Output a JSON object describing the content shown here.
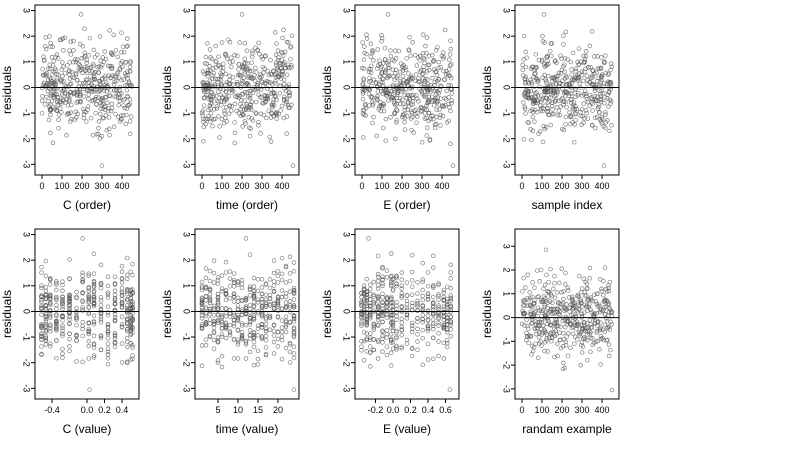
{
  "chart_data": [
    {
      "type": "scatter",
      "xlabel": "C (order)",
      "ylabel": "residuals",
      "xlim": [
        -20,
        470
      ],
      "ylim": [
        -3.3,
        3.1
      ],
      "xticks": [
        0,
        100,
        200,
        300,
        400
      ],
      "xtick_labels": [
        "0",
        "100",
        "200",
        "300",
        "400"
      ],
      "yticks": [
        -3,
        -2,
        -1,
        0,
        1,
        2,
        3
      ],
      "ytick_labels": [
        "-3",
        "-2",
        "-1",
        "0",
        "1",
        "2",
        "3"
      ],
      "hline": 0,
      "seed": 11,
      "gen": "order",
      "outlier_x": [
        195,
        300
      ],
      "n": 450
    },
    {
      "type": "scatter",
      "xlabel": "time (order)",
      "ylabel": "residuals",
      "xlim": [
        -20,
        470
      ],
      "ylim": [
        -3.3,
        3.1
      ],
      "xticks": [
        0,
        100,
        200,
        300,
        400
      ],
      "xtick_labels": [
        "0",
        "100",
        "200",
        "300",
        "400"
      ],
      "yticks": [
        -3,
        -2,
        -1,
        0,
        1,
        2,
        3
      ],
      "ytick_labels": [
        "-3",
        "-2",
        "-1",
        "0",
        "1",
        "2",
        "3"
      ],
      "hline": 0,
      "seed": 23,
      "gen": "order",
      "outlier_x": [
        200,
        455
      ],
      "n": 450
    },
    {
      "type": "scatter",
      "xlabel": "E (order)",
      "ylabel": "residuals",
      "xlim": [
        -20,
        470
      ],
      "ylim": [
        -3.3,
        3.1
      ],
      "xticks": [
        0,
        100,
        200,
        300,
        400
      ],
      "xtick_labels": [
        "0",
        "100",
        "200",
        "300",
        "400"
      ],
      "yticks": [
        -3,
        -2,
        -1,
        0,
        1,
        2,
        3
      ],
      "ytick_labels": [
        "-3",
        "-2",
        "-1",
        "0",
        "1",
        "2",
        "3"
      ],
      "hline": 0,
      "seed": 37,
      "gen": "order",
      "outlier_x": [
        130,
        455
      ],
      "n": 450
    },
    {
      "type": "scatter",
      "xlabel": "sample index",
      "ylabel": "residuals",
      "xlim": [
        -20,
        470
      ],
      "ylim": [
        -3.3,
        3.1
      ],
      "xticks": [
        0,
        100,
        200,
        300,
        400
      ],
      "xtick_labels": [
        "0",
        "100",
        "200",
        "300",
        "400"
      ],
      "yticks": [
        -3,
        -2,
        -1,
        0,
        1,
        2,
        3
      ],
      "ytick_labels": [
        "-3",
        "-2",
        "-1",
        "0",
        "1",
        "2",
        "3"
      ],
      "hline": 0,
      "seed": 41,
      "gen": "order",
      "outlier_x": [
        110,
        410
      ],
      "n": 450
    },
    {
      "type": "scatter",
      "xlabel": "C (value)",
      "ylabel": "residuals",
      "xlim": [
        -0.56,
        0.56
      ],
      "ylim": [
        -3.3,
        3.1
      ],
      "xticks": [
        -0.4,
        0,
        0.2,
        0.4
      ],
      "xtick_labels": [
        "-0.4",
        "0.0",
        "0.2",
        "0.4"
      ],
      "yticks": [
        -3,
        -2,
        -1,
        0,
        1,
        2,
        3
      ],
      "ytick_labels": [
        "-3",
        "-2",
        "-1",
        "0",
        "1",
        "2",
        "3"
      ],
      "hline": 0,
      "seed": 53,
      "gen": "value",
      "levels": [
        -0.52,
        -0.47,
        -0.42,
        -0.35,
        -0.28,
        -0.2,
        -0.12,
        -0.05,
        0.02,
        0.08,
        0.16,
        0.24,
        0.32,
        0.4,
        0.46,
        0.5,
        0.52
      ],
      "outlier_x": [
        -0.05,
        0.03
      ],
      "n": 450
    },
    {
      "type": "scatter",
      "xlabel": "time (value)",
      "ylabel": "residuals",
      "xlim": [
        0,
        24.5
      ],
      "ylim": [
        -3.3,
        3.1
      ],
      "xticks": [
        5,
        10,
        15,
        20
      ],
      "xtick_labels": [
        "5",
        "10",
        "15",
        "20"
      ],
      "yticks": [
        -3,
        -2,
        -1,
        0,
        1,
        2,
        3
      ],
      "ytick_labels": [
        "-3",
        "-2",
        "-1",
        "0",
        "1",
        "2",
        "3"
      ],
      "hline": 0,
      "seed": 67,
      "gen": "value",
      "levels": [
        1,
        2,
        3,
        4,
        5,
        6,
        7,
        8,
        9,
        10,
        11,
        12,
        13,
        14,
        15,
        16,
        17,
        18,
        19,
        20,
        21,
        22,
        23,
        24
      ],
      "outlier_x": [
        12,
        24
      ],
      "n": 450
    },
    {
      "type": "scatter",
      "xlabel": "E (value)",
      "ylabel": "residuals",
      "xlim": [
        -0.4,
        0.72
      ],
      "ylim": [
        -3.3,
        3.1
      ],
      "xticks": [
        -0.2,
        0,
        0.2,
        0.4,
        0.6
      ],
      "xtick_labels": [
        "-0.2",
        "0.0",
        "0.2",
        "0.4",
        "0.6"
      ],
      "yticks": [
        -3,
        -2,
        -1,
        0,
        1,
        2,
        3
      ],
      "ytick_labels": [
        "-3",
        "-2",
        "-1",
        "0",
        "1",
        "2",
        "3"
      ],
      "hline": 0,
      "seed": 79,
      "gen": "value",
      "levels": [
        -0.36,
        -0.33,
        -0.3,
        -0.26,
        -0.22,
        -0.17,
        -0.12,
        -0.07,
        -0.02,
        0,
        0.04,
        0.1,
        0.16,
        0.22,
        0.28,
        0.34,
        0.4,
        0.46,
        0.52,
        0.58,
        0.62,
        0.66
      ],
      "outlier_x": [
        -0.28,
        0.65
      ],
      "n": 450
    },
    {
      "type": "scatter",
      "xlabel": "randam example",
      "ylabel": "residuals",
      "xlim": [
        -20,
        470
      ],
      "ylim": [
        -3.3,
        3.6
      ],
      "xticks": [
        0,
        100,
        200,
        300,
        400
      ],
      "xtick_labels": [
        "0",
        "100",
        "200",
        "300",
        "400"
      ],
      "yticks": [
        -3,
        -2,
        -1,
        0,
        1,
        2,
        3
      ],
      "ytick_labels": [
        "-3",
        "-2",
        "-1",
        "0",
        "1",
        "2",
        "3"
      ],
      "hline": 0,
      "seed": 97,
      "gen": "order",
      "outlier_x": [
        120,
        450
      ],
      "n": 450
    }
  ]
}
